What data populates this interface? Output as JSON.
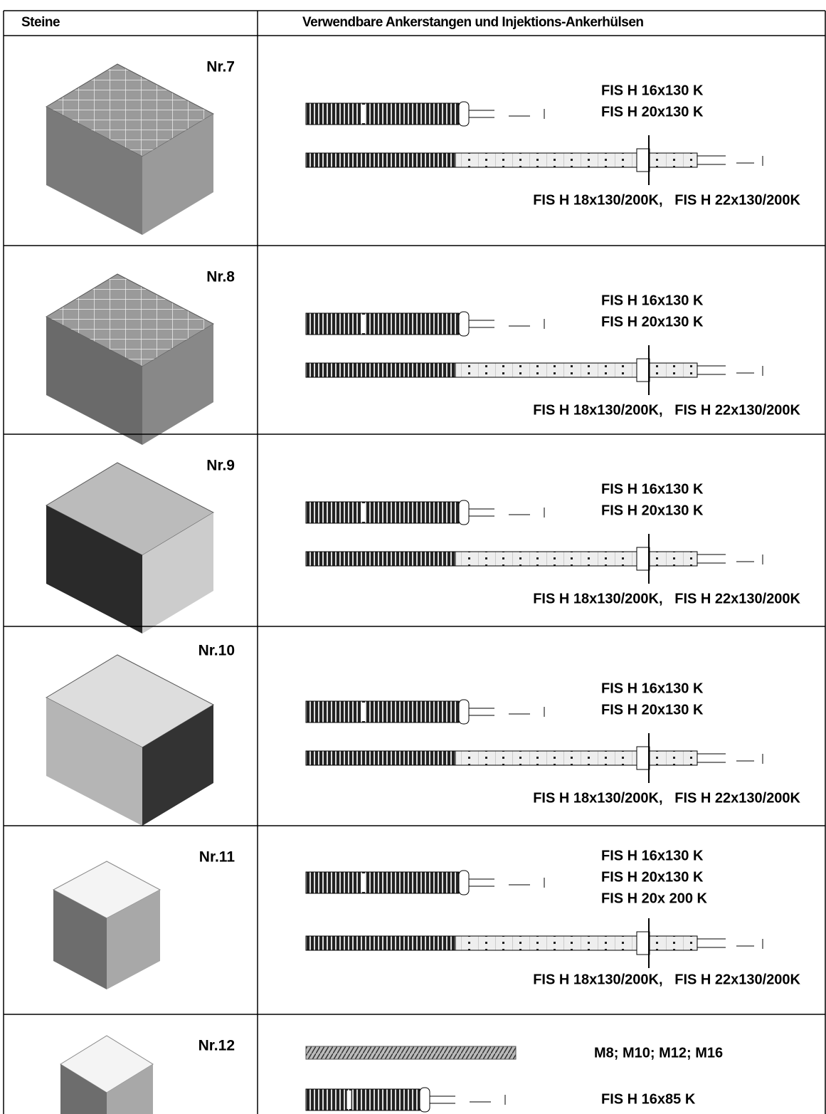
{
  "table": {
    "header": [
      "Steine",
      "Verwendbare Ankerstangen und Injektions-Ankerhülsen"
    ],
    "rows": [
      {
        "stone": "Nr.7",
        "short": [
          "FIS H 16x130 K",
          "FIS H 20x130 K"
        ],
        "long": "FIS H 18x130/200K,   FIS H 22x130/200K"
      },
      {
        "stone": "Nr.8",
        "short": [
          "FIS H 16x130 K",
          "FIS H 20x130 K"
        ],
        "long": "FIS H 18x130/200K,   FIS H 22x130/200K"
      },
      {
        "stone": "Nr.9",
        "short": [
          "FIS H 16x130 K",
          "FIS H 20x130 K"
        ],
        "long": "FIS H 18x130/200K,   FIS H 22x130/200K"
      },
      {
        "stone": "Nr.10",
        "short": [
          "FIS H 16x130 K",
          "FIS H 20x130 K"
        ],
        "long": "FIS H 18x130/200K,   FIS H 22x130/200K"
      },
      {
        "stone": "Nr.11",
        "short": [
          "FIS H 16x130 K",
          "FIS H 20x130 K",
          "FIS H 20x 200 K"
        ],
        "long": "FIS H 18x130/200K,   FIS H 22x130/200K"
      },
      {
        "stone": "Nr.12",
        "rod": "M8; M10; M12; M16",
        "short": [
          "FIS H 16x85 K"
        ]
      }
    ]
  }
}
